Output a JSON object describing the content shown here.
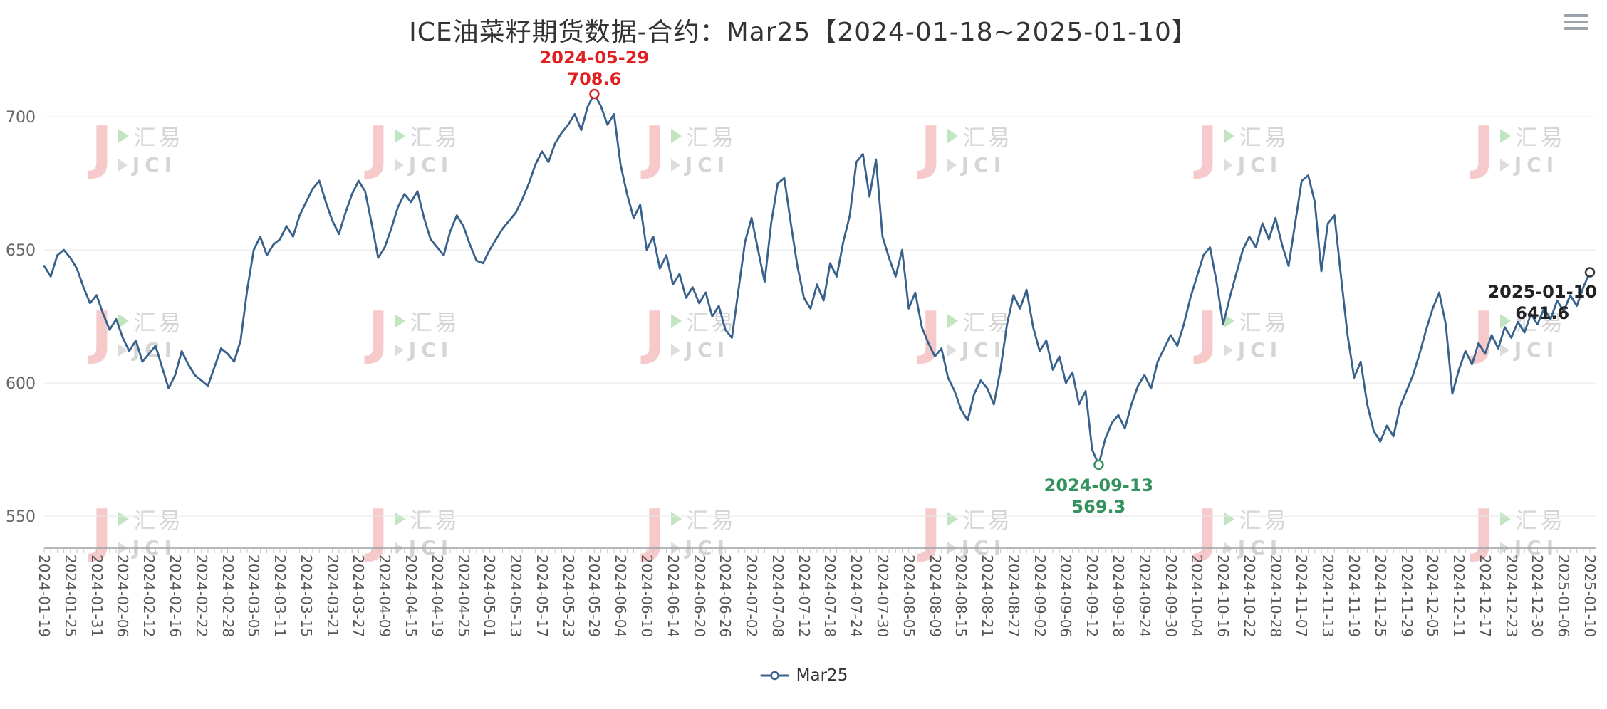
{
  "header": {
    "title": "ICE油菜籽期货数据-合约：Mar25【2024-01-18~2025-01-10】"
  },
  "toolbox": {
    "menu_icon": "hamburger-menu-icon"
  },
  "legend": {
    "position": "bottom",
    "items": [
      {
        "label": "Mar25",
        "color": "#38618c"
      }
    ]
  },
  "watermark": {
    "logo_letter": "J",
    "line1": "汇易",
    "line2": "JCI",
    "accent_red": "#efa0a0",
    "accent_green": "#8fce8f",
    "text_gray": "#b3b3b3"
  },
  "chart_data": {
    "type": "line",
    "title": "ICE油菜籽期货数据-合约：Mar25【2024-01-18~2025-01-10】",
    "xlabel": "",
    "ylabel": "",
    "grid": true,
    "legend_position": "bottom",
    "ylim": [
      538,
      718
    ],
    "yticks": [
      550,
      600,
      650,
      700
    ],
    "points_per_label": 4,
    "x_labels": [
      "2024-01-19",
      "2024-01-25",
      "2024-01-31",
      "2024-02-06",
      "2024-02-12",
      "2024-02-16",
      "2024-02-22",
      "2024-02-28",
      "2024-03-05",
      "2024-03-11",
      "2024-03-15",
      "2024-03-21",
      "2024-03-27",
      "2024-04-09",
      "2024-04-15",
      "2024-04-19",
      "2024-04-25",
      "2024-05-01",
      "2024-05-13",
      "2024-05-17",
      "2024-05-23",
      "2024-05-29",
      "2024-06-04",
      "2024-06-10",
      "2024-06-14",
      "2024-06-20",
      "2024-06-26",
      "2024-07-02",
      "2024-07-08",
      "2024-07-12",
      "2024-07-18",
      "2024-07-24",
      "2024-07-30",
      "2024-08-05",
      "2024-08-09",
      "2024-08-15",
      "2024-08-21",
      "2024-08-27",
      "2024-09-02",
      "2024-09-06",
      "2024-09-12",
      "2024-09-18",
      "2024-09-24",
      "2024-09-30",
      "2024-10-04",
      "2024-10-16",
      "2024-10-22",
      "2024-10-28",
      "2024-11-07",
      "2024-11-13",
      "2024-11-19",
      "2024-11-25",
      "2024-11-29",
      "2024-12-05",
      "2024-12-11",
      "2024-12-17",
      "2024-12-23",
      "2024-12-30",
      "2025-01-06",
      "2025-01-10"
    ],
    "series": [
      {
        "name": "Mar25",
        "color": "#38618c",
        "values": [
          644,
          640,
          648,
          650,
          647,
          643,
          636,
          630,
          633,
          626,
          620,
          624,
          617,
          612,
          616,
          608,
          611,
          614,
          606,
          598,
          603,
          612,
          607,
          603,
          601,
          599,
          606,
          613,
          611,
          608,
          616,
          635,
          650,
          655,
          648,
          652,
          654,
          659,
          655,
          663,
          668,
          673,
          676,
          668,
          661,
          656,
          664,
          671,
          676,
          672,
          660,
          647,
          651,
          658,
          666,
          671,
          668,
          672,
          662,
          654,
          651,
          648,
          657,
          663,
          659,
          652,
          646,
          645,
          650,
          654,
          658,
          661,
          664,
          669,
          675,
          682,
          687,
          683,
          690,
          694,
          697,
          701,
          695,
          704,
          708.6,
          704,
          697,
          701,
          682,
          671,
          662,
          667,
          650,
          655,
          643,
          648,
          637,
          641,
          632,
          636,
          630,
          634,
          625,
          629,
          620,
          617,
          635,
          653,
          662,
          650,
          638,
          660,
          675,
          677,
          660,
          644,
          632,
          628,
          637,
          631,
          645,
          640,
          653,
          663,
          683,
          686,
          670,
          684,
          655,
          647,
          640,
          650,
          628,
          634,
          621,
          615,
          610,
          613,
          602,
          597,
          590,
          586,
          596,
          601,
          598,
          592,
          605,
          622,
          633,
          628,
          635,
          621,
          612,
          616,
          605,
          610,
          600,
          604,
          592,
          597,
          575,
          569.3,
          579,
          585,
          588,
          583,
          592,
          599,
          603,
          598,
          608,
          613,
          618,
          614,
          622,
          632,
          640,
          648,
          651,
          638,
          622,
          632,
          641,
          650,
          655,
          651,
          660,
          654,
          662,
          652,
          644,
          660,
          676,
          678,
          668,
          642,
          660,
          663,
          640,
          618,
          602,
          608,
          592,
          582,
          578,
          584,
          580,
          591,
          597,
          603,
          611,
          620,
          628,
          634,
          622,
          596,
          605,
          612,
          607,
          615,
          611,
          618,
          613,
          621,
          617,
          623,
          619,
          626,
          622,
          628,
          624,
          631,
          627,
          633,
          629,
          636,
          641.6
        ]
      }
    ],
    "annotations": {
      "max": {
        "date": "2024-05-29",
        "value": 708.6,
        "color": "#e02020"
      },
      "min": {
        "date": "2024-09-13",
        "value": 569.3,
        "color": "#35925c"
      },
      "last": {
        "date": "2025-01-10",
        "value": 641.6,
        "color": "#222222"
      }
    }
  }
}
